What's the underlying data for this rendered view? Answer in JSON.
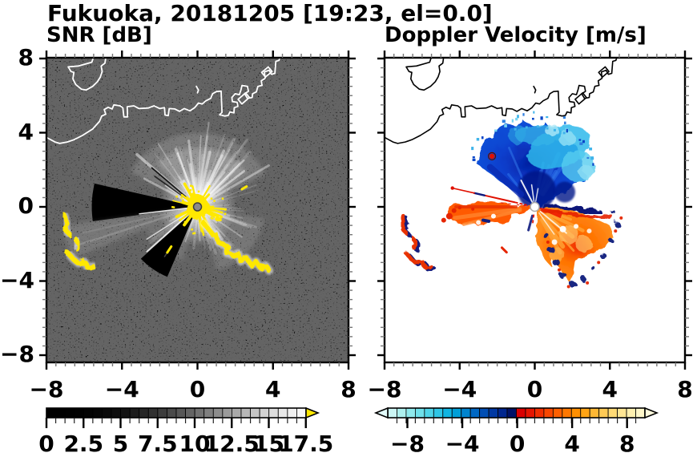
{
  "title": "Fukuoka, 20181205 [19:23, el=0.0]",
  "panels": [
    {
      "subtitle": "SNR [dB]",
      "x_tick_labels": [
        "−8",
        "−4",
        "0",
        "4",
        "8"
      ],
      "y_tick_labels": [
        "8",
        "4",
        "0",
        "−4",
        "−8"
      ],
      "background_color": "#000000",
      "coastline_color": "#ffffff",
      "high_echo_color": "#ffe800",
      "colorbar": {
        "tick_labels": [
          "0",
          "2.5",
          "5",
          "7.5",
          "10",
          "12.5",
          "15",
          "17.5"
        ],
        "cell_colors": [
          "#000000",
          "#000000",
          "#010101",
          "#020202",
          "#040404",
          "#060606",
          "#090909",
          "#0d0d0d",
          "#131313",
          "#1c1c1c",
          "#262626",
          "#313131",
          "#3d3d3d",
          "#4a4a4a",
          "#575757",
          "#646464",
          "#717171",
          "#7f7f7f",
          "#8d8d8d",
          "#9b9b9b",
          "#a9a9a9",
          "#b7b7b7",
          "#c5c5c5",
          "#d2d2d2",
          "#dedede",
          "#e8e8e8",
          "#f0f0f0",
          "#f7f7f7"
        ],
        "over_arrow_color": "#ffe800"
      }
    },
    {
      "subtitle": "Doppler Velocity [m/s]",
      "x_tick_labels": [
        "−8",
        "−4",
        "0",
        "4",
        "8"
      ],
      "y_tick_labels": [],
      "background_color": "#ffffff",
      "coastline_color": "#000000",
      "colorbar": {
        "tick_labels": [
          "−8",
          "−4",
          "0",
          "4",
          "8"
        ],
        "cell_colors": [
          "#ccf6f4",
          "#aef0ee",
          "#8fe9ec",
          "#6fe0ea",
          "#4ed4e8",
          "#2fc6e6",
          "#10b5e2",
          "#009fd8",
          "#0084cf",
          "#0068c4",
          "#004eb4",
          "#0038a2",
          "#00268e",
          "#001166",
          "#d90000",
          "#e51500",
          "#f02e00",
          "#f84700",
          "#ff6000",
          "#ff7800",
          "#ff8f00",
          "#ffa415",
          "#ffb835",
          "#ffca55",
          "#ffda75",
          "#ffe694",
          "#fff0b0",
          "#fff7c9"
        ],
        "under_arrow_color": "#e2fbfa",
        "over_arrow_color": "#fffbdd"
      }
    }
  ],
  "chart_data": [
    {
      "type": "heatmap",
      "title": "SNR [dB]",
      "suptitle": "Fukuoka, 20181205 [19:23, el=0.0]",
      "x_range": [
        -8,
        8
      ],
      "y_range": [
        -8,
        8
      ],
      "x_ticks": [
        -8,
        -4,
        0,
        4,
        8
      ],
      "y_ticks": [
        8,
        4,
        0,
        -4,
        -8
      ],
      "minor_tick_interval": 0.5,
      "grid": false,
      "colorbar": {
        "range": [
          0,
          17.5
        ],
        "ticks": [
          0,
          2.5,
          5,
          7.5,
          10,
          12.5,
          15,
          17.5
        ],
        "n_cells": 28,
        "colormap": "grayscale, black at 0 dB ramping to white at 17.5 dB",
        "over_color": "yellow arrow for SNR > 17.5 dB"
      },
      "features": [
        {
          "name": "radar-site-marker",
          "x": 0,
          "y": 0,
          "desc": "gray dot at the panel origin"
        },
        {
          "name": "saturated-core",
          "x": 0,
          "y": 0,
          "radius": 1.5,
          "value": ">17.5 dB",
          "desc": "yellow saturated echo blob with radial spikes around the radar"
        },
        {
          "name": "beam-fan",
          "desc": "bright white radial streaks (moderate SNR) fanning mainly northward to r≈4.5, also to the southeast and southwest"
        },
        {
          "name": "shadow-sector",
          "desc": "black low-SNR wedge toward the west and south-southwest"
        },
        {
          "name": "echo-chain-west",
          "x_extent": [
            -7.1,
            -5.5
          ],
          "y_extent": [
            -3.4,
            -0.4
          ],
          "value": ">17.5 dB",
          "desc": "chain of yellow echoes"
        },
        {
          "name": "echo-chain-southeast",
          "x_extent": [
            0.3,
            3.8
          ],
          "y_extent": [
            -3.5,
            -0.9
          ],
          "value": ">17.5 dB",
          "desc": "chain of yellow echoes running away from the radar"
        },
        {
          "name": "coastline",
          "desc": "white coastline across the north with a cove at upper left and blocky harbor works at upper right"
        }
      ]
    },
    {
      "type": "heatmap",
      "title": "Doppler Velocity [m/s]",
      "x_range": [
        -8,
        8
      ],
      "y_range": [
        -8,
        8
      ],
      "x_ticks": [
        -8,
        -4,
        0,
        4,
        8
      ],
      "y_ticks": [
        8,
        4,
        0,
        -4,
        -8
      ],
      "minor_tick_interval": 0.5,
      "grid": false,
      "colorbar": {
        "range": [
          -9.4,
          9.4
        ],
        "ticks": [
          -8,
          -4,
          0,
          4,
          8
        ],
        "n_cells": 28,
        "colormap": "pale cyan → cyan → blue → dark navy for negative; red → orange → yellow → pale yellow for positive",
        "under_color": "pale cyan arrow",
        "over_color": "pale yellow arrow"
      },
      "features": [
        {
          "name": "radar-site-marker",
          "x": 0,
          "y": 0,
          "desc": "white dot with gray ring"
        },
        {
          "name": "approaching-fan-north",
          "value_range": [
            -8,
            -1
          ],
          "desc": "blue negative-velocity fan north of radar, r≈4.5; darkest navy near center, lightest cyan at the far/top-right edge"
        },
        {
          "name": "receding-fan-southeast",
          "value_range": [
            3,
            8
          ],
          "desc": "orange positive-velocity fan southeast of radar to r≈4.5 with pale yellow streaks and dark-navy aliased fringes along its edges"
        },
        {
          "name": "receding-wedge-west",
          "value_range": [
            4,
            8
          ],
          "desc": "red-orange wedge due west of radar to r≈4.6"
        },
        {
          "name": "thin-dashed-ray",
          "desc": "narrow dashed red ray with a navy segment toward WNW, r≈4.5"
        },
        {
          "name": "echo-chain-west",
          "x_extent": [
            -7.1,
            -5.5
          ],
          "y_extent": [
            -3.4,
            -0.4
          ],
          "desc": "red blobs edged dark navy (same targets as SNR west chain)"
        },
        {
          "name": "coastline",
          "desc": "black coastline identical to left panel"
        }
      ]
    }
  ]
}
